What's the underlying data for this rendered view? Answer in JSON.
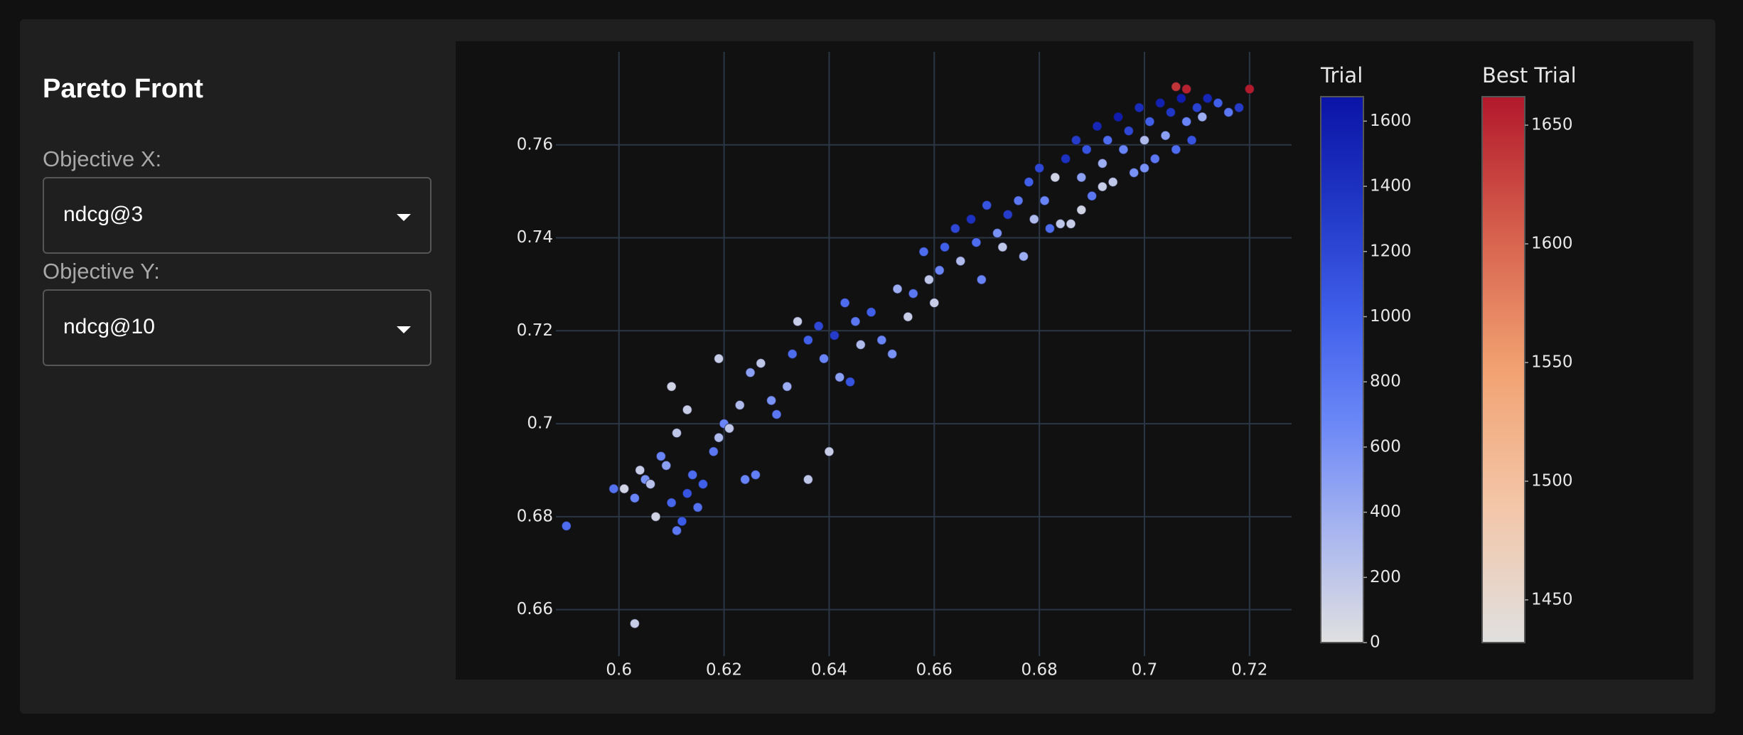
{
  "sidebar": {
    "title": "Pareto Front",
    "objective_x_label": "Objective X:",
    "objective_x_value": "ndcg@3",
    "objective_y_label": "Objective Y:",
    "objective_y_value": "ndcg@10"
  },
  "chart_data": {
    "type": "scatter",
    "xlim": [
      0.588,
      0.728
    ],
    "ylim": [
      0.65,
      0.78
    ],
    "xticks": [
      0.6,
      0.62,
      0.64,
      0.66,
      0.68,
      0.7,
      0.72
    ],
    "yticks": [
      0.66,
      0.68,
      0.7,
      0.72,
      0.74,
      0.76
    ],
    "grid": true,
    "series": [
      {
        "name": "Trial",
        "x": [
          0.59,
          0.599,
          0.601,
          0.603,
          0.604,
          0.605,
          0.606,
          0.607,
          0.608,
          0.609,
          0.61,
          0.611,
          0.612,
          0.613,
          0.614,
          0.615,
          0.616,
          0.603,
          0.61,
          0.611,
          0.613,
          0.618,
          0.619,
          0.62,
          0.619,
          0.621,
          0.624,
          0.626,
          0.623,
          0.625,
          0.627,
          0.629,
          0.63,
          0.632,
          0.633,
          0.634,
          0.636,
          0.636,
          0.638,
          0.639,
          0.64,
          0.641,
          0.642,
          0.643,
          0.644,
          0.645,
          0.646,
          0.648,
          0.65,
          0.652,
          0.653,
          0.655,
          0.656,
          0.658,
          0.659,
          0.66,
          0.661,
          0.662,
          0.664,
          0.665,
          0.667,
          0.668,
          0.669,
          0.67,
          0.672,
          0.673,
          0.674,
          0.676,
          0.677,
          0.678,
          0.679,
          0.68,
          0.681,
          0.682,
          0.683,
          0.685,
          0.686,
          0.687,
          0.688,
          0.689,
          0.69,
          0.691,
          0.692,
          0.693,
          0.694,
          0.695,
          0.696,
          0.697,
          0.698,
          0.699,
          0.7,
          0.701,
          0.702,
          0.703,
          0.704,
          0.705,
          0.706,
          0.707,
          0.708,
          0.709,
          0.71,
          0.711,
          0.712,
          0.714,
          0.716,
          0.718,
          0.684,
          0.688,
          0.692,
          0.7
        ],
        "y": [
          0.678,
          0.686,
          0.686,
          0.684,
          0.69,
          0.688,
          0.687,
          0.68,
          0.693,
          0.691,
          0.683,
          0.677,
          0.679,
          0.685,
          0.689,
          0.682,
          0.687,
          0.657,
          0.708,
          0.698,
          0.703,
          0.694,
          0.697,
          0.7,
          0.714,
          0.699,
          0.688,
          0.689,
          0.704,
          0.711,
          0.713,
          0.705,
          0.702,
          0.708,
          0.715,
          0.722,
          0.688,
          0.718,
          0.721,
          0.714,
          0.694,
          0.719,
          0.71,
          0.726,
          0.709,
          0.722,
          0.717,
          0.724,
          0.718,
          0.715,
          0.729,
          0.723,
          0.728,
          0.737,
          0.731,
          0.726,
          0.733,
          0.738,
          0.742,
          0.735,
          0.744,
          0.739,
          0.731,
          0.747,
          0.741,
          0.738,
          0.745,
          0.748,
          0.736,
          0.752,
          0.744,
          0.755,
          0.748,
          0.742,
          0.753,
          0.757,
          0.743,
          0.761,
          0.753,
          0.759,
          0.749,
          0.764,
          0.756,
          0.761,
          0.752,
          0.766,
          0.759,
          0.763,
          0.754,
          0.768,
          0.761,
          0.765,
          0.757,
          0.769,
          0.762,
          0.767,
          0.759,
          0.77,
          0.765,
          0.761,
          0.768,
          0.766,
          0.77,
          0.769,
          0.767,
          0.768,
          0.743,
          0.746,
          0.751,
          0.755
        ],
        "color_values": [
          900,
          850,
          100,
          700,
          150,
          600,
          250,
          100,
          700,
          500,
          950,
          800,
          1050,
          1100,
          900,
          850,
          1000,
          150,
          100,
          200,
          150,
          800,
          300,
          700,
          150,
          200,
          700,
          750,
          300,
          500,
          200,
          600,
          800,
          400,
          900,
          150,
          200,
          1000,
          1200,
          700,
          150,
          1300,
          500,
          900,
          1100,
          800,
          300,
          1000,
          700,
          600,
          400,
          150,
          800,
          900,
          200,
          150,
          700,
          1000,
          1200,
          300,
          1400,
          900,
          700,
          1100,
          600,
          200,
          1300,
          800,
          400,
          1000,
          300,
          1200,
          700,
          900,
          100,
          1400,
          150,
          1300,
          500,
          1100,
          800,
          1500,
          400,
          900,
          200,
          1600,
          700,
          1200,
          600,
          1450,
          300,
          1000,
          800,
          1550,
          500,
          1350,
          900,
          1600,
          700,
          1100,
          1250,
          400,
          1500,
          1000,
          800,
          1300,
          200,
          100,
          150,
          600
        ],
        "color_lim": [
          0,
          1675
        ],
        "color_ticks": [
          0,
          200,
          400,
          600,
          800,
          1000,
          1200,
          1400,
          1600
        ],
        "colorscale": [
          "#e0e0e0",
          "#a9b6ef",
          "#6c88f7",
          "#3f5fea",
          "#2137c6",
          "#0a14a6"
        ]
      },
      {
        "name": "Best Trial",
        "x": [
          0.706,
          0.708,
          0.72
        ],
        "y": [
          0.7725,
          0.772,
          0.772
        ],
        "color_values": [
          1640,
          1655,
          1660
        ],
        "color_lim": [
          1432,
          1662
        ],
        "color_ticks": [
          1450,
          1500,
          1550,
          1600,
          1650
        ],
        "colorscale": [
          "#e0e0e0",
          "#f3c6a8",
          "#f2a272",
          "#d6604d",
          "#b2182b"
        ]
      }
    ]
  }
}
